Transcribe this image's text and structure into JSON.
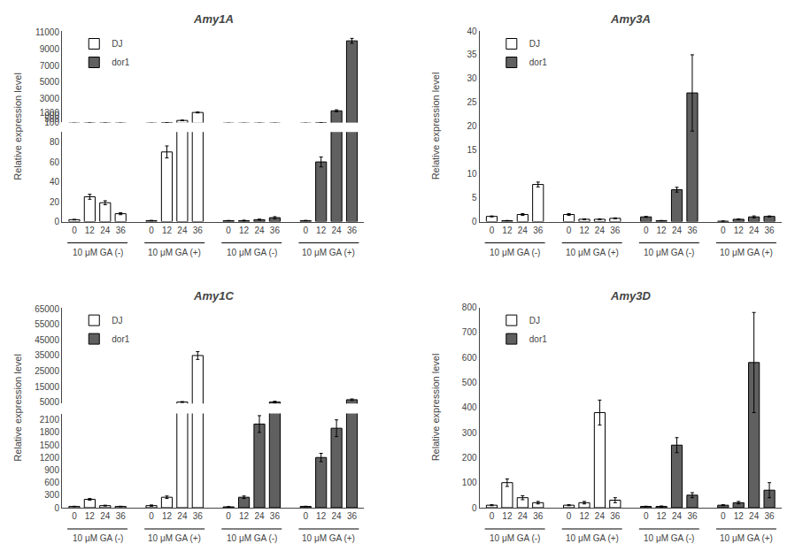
{
  "chart_data": [
    {
      "type": "bar",
      "title": "Amy1A",
      "ylabel": "Relative expression level",
      "categories": [
        "0",
        "12",
        "24",
        "36",
        "0",
        "12",
        "24",
        "36",
        "0",
        "12",
        "24",
        "36",
        "0",
        "12",
        "24",
        "36"
      ],
      "annotations": [
        "10 μM GA (-)",
        "10 μM GA (+)",
        "10 μM GA (-)",
        "10 μM GA (+)"
      ],
      "series": [
        {
          "name": "DJ",
          "color": "#ffffff",
          "values": [
            2,
            25,
            19,
            8,
            1,
            70,
            330,
            1300,
            null,
            null,
            null,
            null,
            null,
            null,
            null,
            null
          ],
          "errors": [
            0.3,
            2.5,
            2,
            1,
            0.3,
            6,
            40,
            60,
            null,
            null,
            null,
            null,
            null,
            null,
            null,
            null
          ]
        },
        {
          "name": "dor1",
          "color": "#606060",
          "values": [
            null,
            null,
            null,
            null,
            null,
            null,
            null,
            null,
            1,
            1,
            2,
            4,
            1,
            60,
            1500,
            10000
          ],
          "errors": [
            null,
            null,
            null,
            null,
            null,
            null,
            null,
            null,
            0.2,
            0.5,
            0.5,
            1,
            0.3,
            5,
            120,
            300
          ]
        }
      ],
      "ylim": [
        [
          0,
          90
        ],
        [
          80,
          11200
        ]
      ],
      "yticks": [
        [
          0,
          20,
          40,
          60,
          80
        ],
        [
          100,
          500,
          900,
          1300,
          3000,
          5000,
          7000,
          9000,
          11000
        ]
      ],
      "grid": false,
      "legend": "upper left"
    },
    {
      "type": "bar",
      "title": "Amy3A",
      "ylabel": "Relative expression level",
      "categories": [
        "0",
        "12",
        "24",
        "36",
        "0",
        "12",
        "24",
        "36",
        "0",
        "12",
        "24",
        "36",
        "0",
        "12",
        "24",
        "36"
      ],
      "annotations": [
        "10 μM GA (-)",
        "10 μM GA (+)",
        "10 μM GA (-)",
        "10 μM GA (+)"
      ],
      "series": [
        {
          "name": "DJ",
          "color": "#ffffff",
          "values": [
            1.1,
            0.2,
            1.5,
            7.8,
            1.5,
            0.5,
            0.5,
            0.7,
            null,
            null,
            null,
            null,
            null,
            null,
            null,
            null
          ],
          "errors": [
            0.1,
            0.05,
            0.2,
            0.5,
            0.2,
            0.1,
            0.1,
            0.1,
            null,
            null,
            null,
            null,
            null,
            null,
            null,
            null
          ]
        },
        {
          "name": "dor1",
          "color": "#606060",
          "values": [
            null,
            null,
            null,
            null,
            null,
            null,
            null,
            null,
            1.0,
            0.2,
            6.7,
            27,
            0.1,
            0.5,
            1.0,
            1.1
          ],
          "errors": [
            null,
            null,
            null,
            null,
            null,
            null,
            null,
            null,
            0.1,
            0.05,
            0.5,
            8,
            0.05,
            0.1,
            0.2,
            0.1
          ]
        }
      ],
      "ylim": [
        0,
        40
      ],
      "yticks": [
        0,
        5,
        10,
        15,
        20,
        25,
        30,
        35,
        40
      ],
      "grid": false,
      "legend": "upper left"
    },
    {
      "type": "bar",
      "title": "Amy1C",
      "ylabel": "Relative expression level",
      "categories": [
        "0",
        "12",
        "24",
        "36",
        "0",
        "12",
        "24",
        "36",
        "0",
        "12",
        "24",
        "36",
        "0",
        "12",
        "24",
        "36"
      ],
      "annotations": [
        "10 μM GA (-)",
        "10 μM GA (+)",
        "10 μM GA (-)",
        "10 μM GA (+)"
      ],
      "series": [
        {
          "name": "DJ",
          "color": "#ffffff",
          "values": [
            30,
            200,
            50,
            30,
            50,
            250,
            5000,
            35000,
            null,
            null,
            null,
            null,
            null,
            null,
            null,
            null
          ],
          "errors": [
            5,
            20,
            10,
            5,
            15,
            30,
            300,
            2500,
            null,
            null,
            null,
            null,
            null,
            null,
            null,
            null
          ]
        },
        {
          "name": "dor1",
          "color": "#606060",
          "values": [
            null,
            null,
            null,
            null,
            null,
            null,
            null,
            null,
            20,
            250,
            2000,
            5000,
            30,
            1200,
            1900,
            6500
          ],
          "errors": [
            null,
            null,
            null,
            null,
            null,
            null,
            null,
            null,
            5,
            30,
            200,
            500,
            5,
            100,
            200,
            500
          ]
        }
      ],
      "ylim": [
        [
          0,
          2250
        ],
        [
          4000,
          66000
        ]
      ],
      "yticks": [
        [
          0,
          300,
          600,
          900,
          1200,
          1500,
          1800,
          2100
        ],
        [
          5000,
          15000,
          25000,
          35000,
          45000,
          55000,
          65000
        ]
      ],
      "grid": false,
      "legend": "upper left"
    },
    {
      "type": "bar",
      "title": "Amy3D",
      "ylabel": "Relative expression level",
      "categories": [
        "0",
        "12",
        "24",
        "36",
        "0",
        "12",
        "24",
        "36",
        "0",
        "12",
        "24",
        "36",
        "0",
        "12",
        "24",
        "36"
      ],
      "annotations": [
        "10 μM GA (-)",
        "10 μM GA (+)",
        "10 μM GA (-)",
        "10 μM GA (+)"
      ],
      "series": [
        {
          "name": "DJ",
          "color": "#ffffff",
          "values": [
            10,
            100,
            40,
            20,
            10,
            20,
            380,
            30,
            null,
            null,
            null,
            null,
            null,
            null,
            null,
            null
          ],
          "errors": [
            2,
            15,
            8,
            5,
            2,
            5,
            50,
            10,
            null,
            null,
            null,
            null,
            null,
            null,
            null,
            null
          ]
        },
        {
          "name": "dor1",
          "color": "#606060",
          "values": [
            null,
            null,
            null,
            null,
            null,
            null,
            null,
            null,
            5,
            5,
            250,
            50,
            10,
            20,
            580,
            70
          ],
          "errors": [
            null,
            null,
            null,
            null,
            null,
            null,
            null,
            null,
            1,
            2,
            30,
            10,
            2,
            5,
            200,
            30
          ]
        }
      ],
      "ylim": [
        0,
        800
      ],
      "yticks": [
        0,
        100,
        200,
        300,
        400,
        500,
        600,
        700,
        800
      ],
      "grid": false,
      "legend": "upper left"
    }
  ]
}
